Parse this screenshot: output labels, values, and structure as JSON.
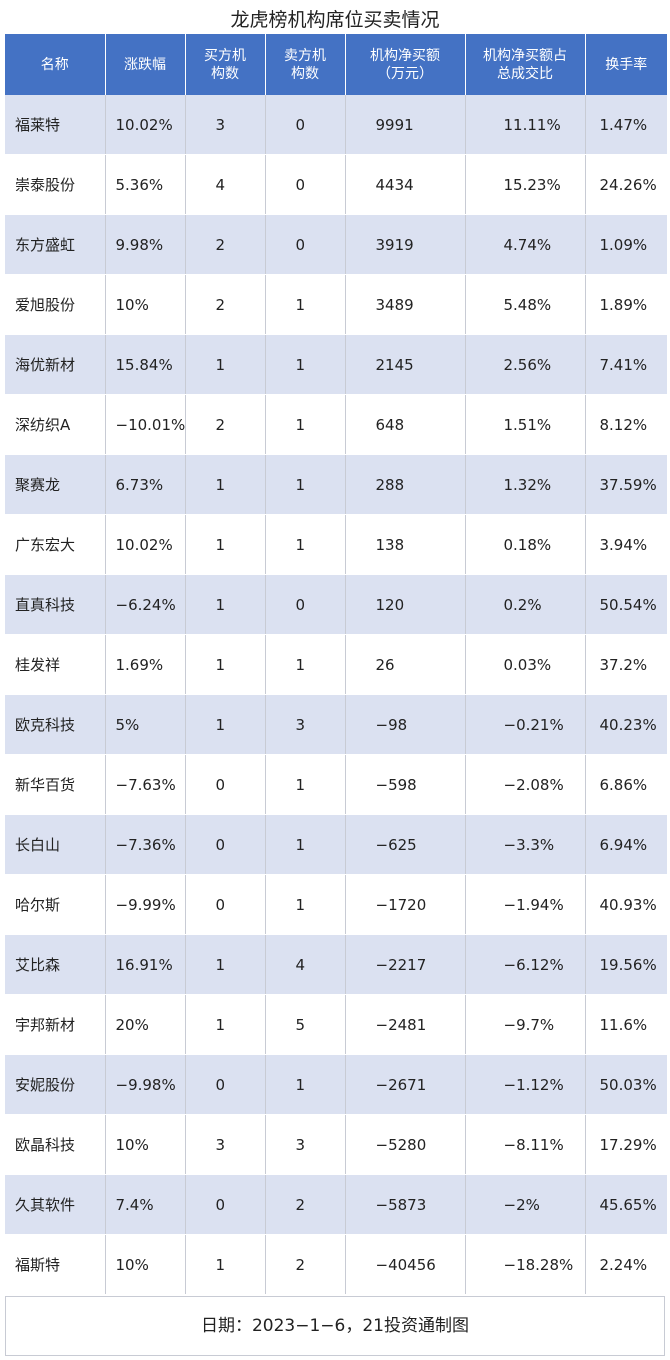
{
  "title": "龙虎榜机构席位买卖情况",
  "headers": [
    "名称",
    "涨跌幅",
    "买方机\n构数",
    "卖方机\n构数",
    "机构净买额\n（万元）",
    "机构净买额占\n总成交比",
    "换手率"
  ],
  "rows": [
    [
      "福莱特",
      "10.02%",
      "3",
      "0",
      "9991",
      "11.11%",
      "1.47%"
    ],
    [
      "崇泰股份",
      "5.36%",
      "4",
      "0",
      "4434",
      "15.23%",
      "24.26%"
    ],
    [
      "东方盛虹",
      "9.98%",
      "2",
      "0",
      "3919",
      "4.74%",
      "1.09%"
    ],
    [
      "爱旭股份",
      "10%",
      "2",
      "1",
      "3489",
      "5.48%",
      "1.89%"
    ],
    [
      "海优新材",
      "15.84%",
      "1",
      "1",
      "2145",
      "2.56%",
      "7.41%"
    ],
    [
      "深纺织A",
      "−10.01%",
      "2",
      "1",
      "648",
      "1.51%",
      "8.12%"
    ],
    [
      "聚赛龙",
      "6.73%",
      "1",
      "1",
      "288",
      "1.32%",
      "37.59%"
    ],
    [
      "广东宏大",
      "10.02%",
      "1",
      "1",
      "138",
      "0.18%",
      "3.94%"
    ],
    [
      "直真科技",
      "−6.24%",
      "1",
      "0",
      "120",
      "0.2%",
      "50.54%"
    ],
    [
      "桂发祥",
      "1.69%",
      "1",
      "1",
      "26",
      "0.03%",
      "37.2%"
    ],
    [
      "欧克科技",
      "5%",
      "1",
      "3",
      "−98",
      "−0.21%",
      "40.23%"
    ],
    [
      "新华百货",
      "−7.63%",
      "0",
      "1",
      "−598",
      "−2.08%",
      "6.86%"
    ],
    [
      "长白山",
      "−7.36%",
      "0",
      "1",
      "−625",
      "−3.3%",
      "6.94%"
    ],
    [
      "哈尔斯",
      "−9.99%",
      "0",
      "1",
      "−1720",
      "−1.94%",
      "40.93%"
    ],
    [
      "艾比森",
      "16.91%",
      "1",
      "4",
      "−2217",
      "−6.12%",
      "19.56%"
    ],
    [
      "宇邦新材",
      "20%",
      "1",
      "5",
      "−2481",
      "−9.7%",
      "11.6%"
    ],
    [
      "安妮股份",
      "−9.98%",
      "0",
      "1",
      "−2671",
      "−1.12%",
      "50.03%"
    ],
    [
      "欧晶科技",
      "10%",
      "3",
      "3",
      "−5280",
      "−8.11%",
      "17.29%"
    ],
    [
      "久其软件",
      "7.4%",
      "0",
      "2",
      "−5873",
      "−2%",
      "45.65%"
    ],
    [
      "福斯特",
      "10%",
      "1",
      "2",
      "−40456",
      "−18.28%",
      "2.24%"
    ]
  ],
  "footer": "日期：2023−1−6，21投资通制图",
  "colors": {
    "header_bg": "#4472c4",
    "stripe_bg": "#dbe1f1"
  }
}
